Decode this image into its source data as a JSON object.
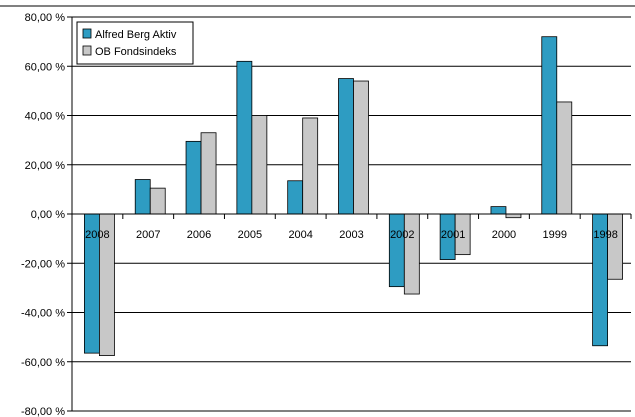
{
  "chart_data": {
    "type": "bar",
    "categories": [
      "2008",
      "2007",
      "2006",
      "2005",
      "2004",
      "2003",
      "2002",
      "2001",
      "2000",
      "1999",
      "1998"
    ],
    "series": [
      {
        "name": "Alfred Berg Aktiv",
        "color": "#2e9cc2",
        "values": [
          -56.5,
          14,
          29.5,
          62,
          13.5,
          55,
          -29.5,
          -18.5,
          3,
          72,
          -53.5
        ]
      },
      {
        "name": "OB Fondsindeks",
        "color": "#c8c8c8",
        "values": [
          -57.5,
          10.5,
          33,
          40,
          39,
          54,
          -32.5,
          -16.5,
          -1.5,
          45.5,
          -26.5
        ]
      }
    ],
    "ylim": [
      -80,
      80
    ],
    "yticks": [
      80,
      60,
      40,
      20,
      0,
      -20,
      -40,
      -60,
      -80
    ],
    "ytick_labels": [
      "80,00 %",
      "60,00 %",
      "40,00 %",
      "20,00 %",
      "0,00 %",
      "-20,00 %",
      "-40,00 %",
      "-60,00 %",
      "-80,00 %"
    ],
    "grid": true,
    "legend_position": "top-left",
    "title": "",
    "xlabel": "",
    "ylabel": ""
  }
}
